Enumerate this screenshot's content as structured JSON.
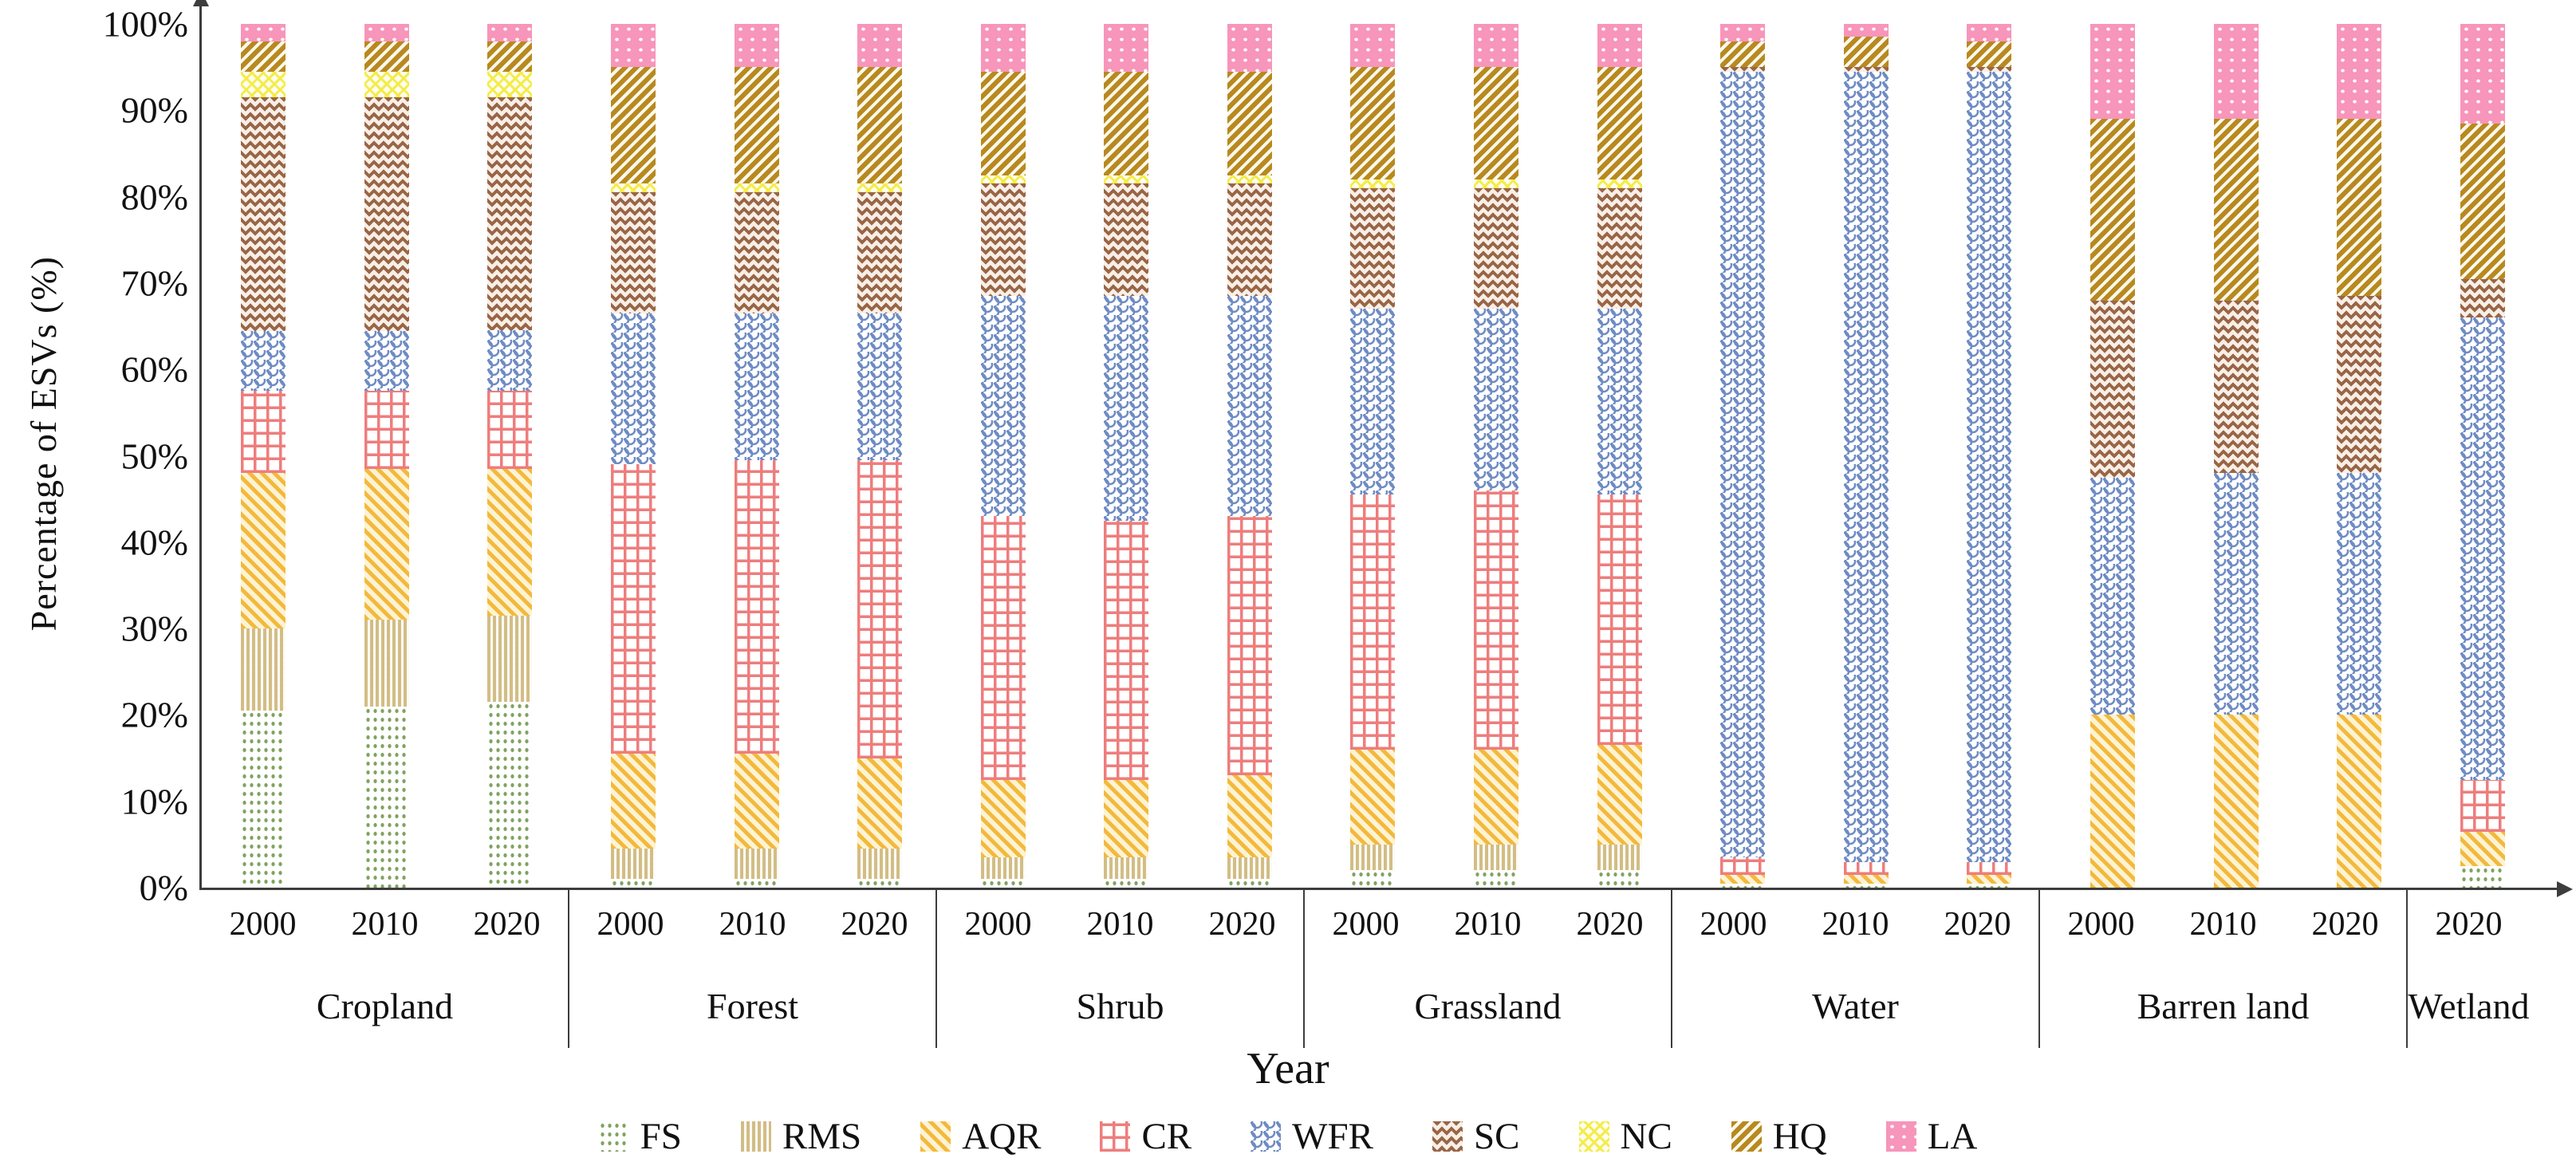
{
  "chart_data": {
    "type": "bar",
    "variant": "100%-stacked-column",
    "title": "",
    "ylabel": "Percentage of ESVs (%)",
    "xlabel": "Year",
    "ylim": [
      0,
      100
    ],
    "grid": false,
    "legend_position": "bottom",
    "y_ticks": [
      "100%",
      "90%",
      "80%",
      "70%",
      "60%",
      "50%",
      "40%",
      "30%",
      "20%",
      "10%",
      "0%"
    ],
    "series_keys": [
      "FS",
      "RMS",
      "AQR",
      "CR",
      "WFR",
      "SC",
      "NC",
      "HQ",
      "LA"
    ],
    "legend": [
      {
        "key": "FS",
        "label": "FS",
        "color": "#7fa35e",
        "pattern": "green-dots"
      },
      {
        "key": "RMS",
        "label": "RMS",
        "color": "#d2bd85",
        "pattern": "tan-vertical-stripes"
      },
      {
        "key": "AQR",
        "label": "AQR",
        "color": "#f3b93c",
        "pattern": "gold-diagonal-stripes"
      },
      {
        "key": "CR",
        "label": "CR",
        "color": "#ee7d7d",
        "pattern": "red-grid"
      },
      {
        "key": "WFR",
        "label": "WFR",
        "color": "#6e8bc3",
        "pattern": "blue-scales"
      },
      {
        "key": "SC",
        "label": "SC",
        "color": "#996647",
        "pattern": "brown-zigzag"
      },
      {
        "key": "NC",
        "label": "NC",
        "color": "#f4ec4a",
        "pattern": "yellow-crosshatch"
      },
      {
        "key": "HQ",
        "label": "HQ",
        "color": "#b8891f",
        "pattern": "dark-gold-diagonal-stripes"
      },
      {
        "key": "LA",
        "label": "LA",
        "color": "#f795ba",
        "pattern": "pink-white-dots"
      }
    ],
    "groups": [
      {
        "category": "Cropland",
        "bars": [
          {
            "year": "2000",
            "values": {
              "FS": 20.5,
              "RMS": 9.5,
              "AQR": 18,
              "CR": 9.5,
              "WFR": 7,
              "SC": 27,
              "NC": 3,
              "HQ": 3.5,
              "LA": 2
            }
          },
          {
            "year": "2010",
            "values": {
              "FS": 21,
              "RMS": 10,
              "AQR": 17.5,
              "CR": 9,
              "WFR": 7,
              "SC": 27,
              "NC": 3,
              "HQ": 3.5,
              "LA": 2
            }
          },
          {
            "year": "2020",
            "values": {
              "FS": 21.5,
              "RMS": 10,
              "AQR": 17,
              "CR": 9,
              "WFR": 7,
              "SC": 27,
              "NC": 3,
              "HQ": 3.5,
              "LA": 2
            }
          }
        ]
      },
      {
        "category": "Forest",
        "bars": [
          {
            "year": "2000",
            "values": {
              "FS": 1,
              "RMS": 3.5,
              "AQR": 11,
              "CR": 33.5,
              "WFR": 17.5,
              "SC": 14,
              "NC": 1,
              "HQ": 13.5,
              "LA": 5
            }
          },
          {
            "year": "2010",
            "values": {
              "FS": 1,
              "RMS": 3.5,
              "AQR": 11,
              "CR": 34,
              "WFR": 17,
              "SC": 14,
              "NC": 1,
              "HQ": 13.5,
              "LA": 5
            }
          },
          {
            "year": "2020",
            "values": {
              "FS": 1,
              "RMS": 3.5,
              "AQR": 10.5,
              "CR": 34.5,
              "WFR": 17,
              "SC": 14,
              "NC": 1,
              "HQ": 13.5,
              "LA": 5
            }
          }
        ]
      },
      {
        "category": "Shrub",
        "bars": [
          {
            "year": "2000",
            "values": {
              "FS": 1,
              "RMS": 2.5,
              "AQR": 9,
              "CR": 30.5,
              "WFR": 25.5,
              "SC": 13,
              "NC": 1,
              "HQ": 12,
              "LA": 5.5
            }
          },
          {
            "year": "2010",
            "values": {
              "FS": 1,
              "RMS": 2.5,
              "AQR": 9,
              "CR": 30,
              "WFR": 26,
              "SC": 13,
              "NC": 1,
              "HQ": 12,
              "LA": 5.5
            }
          },
          {
            "year": "2020",
            "values": {
              "FS": 1,
              "RMS": 2.5,
              "AQR": 9.5,
              "CR": 30,
              "WFR": 25.5,
              "SC": 13,
              "NC": 1,
              "HQ": 12,
              "LA": 5.5
            }
          }
        ]
      },
      {
        "category": "Grassland",
        "bars": [
          {
            "year": "2000",
            "values": {
              "FS": 2,
              "RMS": 3,
              "AQR": 11,
              "CR": 29.5,
              "WFR": 21.5,
              "SC": 14,
              "NC": 1,
              "HQ": 13,
              "LA": 5
            }
          },
          {
            "year": "2010",
            "values": {
              "FS": 2,
              "RMS": 3,
              "AQR": 11,
              "CR": 30,
              "WFR": 21,
              "SC": 14,
              "NC": 1,
              "HQ": 13,
              "LA": 5
            }
          },
          {
            "year": "2020",
            "values": {
              "FS": 2,
              "RMS": 3,
              "AQR": 11.5,
              "CR": 29,
              "WFR": 21.5,
              "SC": 14,
              "NC": 1,
              "HQ": 13,
              "LA": 5
            }
          }
        ]
      },
      {
        "category": "Water",
        "bars": [
          {
            "year": "2000",
            "values": {
              "FS": 0.5,
              "RMS": 0,
              "AQR": 1,
              "CR": 2,
              "WFR": 91,
              "SC": 0.5,
              "NC": 0,
              "HQ": 3,
              "LA": 2
            }
          },
          {
            "year": "2010",
            "values": {
              "FS": 0.5,
              "RMS": 0,
              "AQR": 1,
              "CR": 1.5,
              "WFR": 91.5,
              "SC": 0.5,
              "NC": 0,
              "HQ": 3.5,
              "LA": 1.5
            }
          },
          {
            "year": "2020",
            "values": {
              "FS": 0.5,
              "RMS": 0,
              "AQR": 1,
              "CR": 1.5,
              "WFR": 91.5,
              "SC": 0.5,
              "NC": 0,
              "HQ": 3,
              "LA": 2
            }
          }
        ]
      },
      {
        "category": "Barren land",
        "bars": [
          {
            "year": "2000",
            "values": {
              "FS": 0,
              "RMS": 0,
              "AQR": 20,
              "CR": 0,
              "WFR": 27.5,
              "SC": 20.5,
              "NC": 0,
              "HQ": 21,
              "LA": 11
            }
          },
          {
            "year": "2010",
            "values": {
              "FS": 0,
              "RMS": 0,
              "AQR": 20,
              "CR": 0,
              "WFR": 28,
              "SC": 20,
              "NC": 0,
              "HQ": 21,
              "LA": 11
            }
          },
          {
            "year": "2020",
            "values": {
              "FS": 0,
              "RMS": 0,
              "AQR": 20,
              "CR": 0,
              "WFR": 28,
              "SC": 20.5,
              "NC": 0,
              "HQ": 20.5,
              "LA": 11
            }
          }
        ]
      },
      {
        "category": "Wetland",
        "bars": [
          {
            "year": "2020",
            "values": {
              "FS": 2.5,
              "RMS": 0,
              "AQR": 4,
              "CR": 6,
              "WFR": 53.5,
              "SC": 4.5,
              "NC": 0,
              "HQ": 18,
              "LA": 11.5
            }
          }
        ]
      }
    ]
  }
}
